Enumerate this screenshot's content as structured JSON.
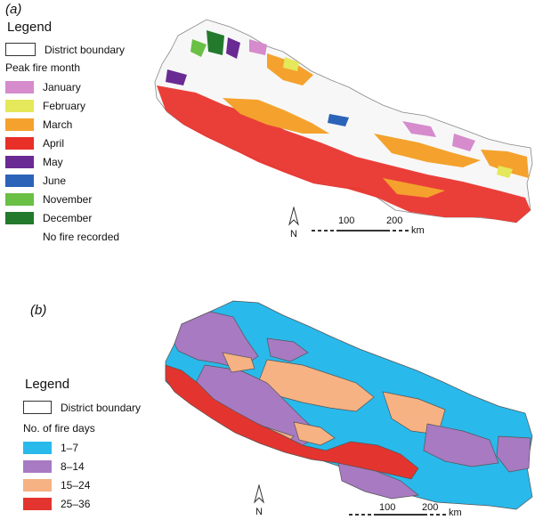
{
  "panel_a": {
    "label": "(a)",
    "legend_title": "Legend",
    "boundary_label": "District boundary",
    "subtitle": "Peak fire month",
    "items": [
      {
        "label": "January",
        "color": "#d58bcc"
      },
      {
        "label": "February",
        "color": "#e4e85a"
      },
      {
        "label": "March",
        "color": "#f4a22d"
      },
      {
        "label": "April",
        "color": "#e82f28"
      },
      {
        "label": "May",
        "color": "#6a2a94"
      },
      {
        "label": "June",
        "color": "#2b63b8"
      },
      {
        "label": "November",
        "color": "#6abf45"
      },
      {
        "label": "December",
        "color": "#237a2d"
      },
      {
        "label": "No fire recorded",
        "color": "#ffffff"
      }
    ],
    "scale": {
      "mid": "100",
      "end": "200",
      "unit": "km"
    },
    "north": "N"
  },
  "panel_b": {
    "label": "(b)",
    "legend_title": "Legend",
    "boundary_label": "District boundary",
    "subtitle": "No. of fire days",
    "items": [
      {
        "label": "1–7",
        "color": "#29b9eb"
      },
      {
        "label": "8–14",
        "color": "#a77ac2"
      },
      {
        "label": "15–24",
        "color": "#f6b283"
      },
      {
        "label": "25–36",
        "color": "#e3342f"
      }
    ],
    "scale": {
      "mid": "100",
      "end": "200",
      "unit": "km"
    },
    "north": "N"
  }
}
